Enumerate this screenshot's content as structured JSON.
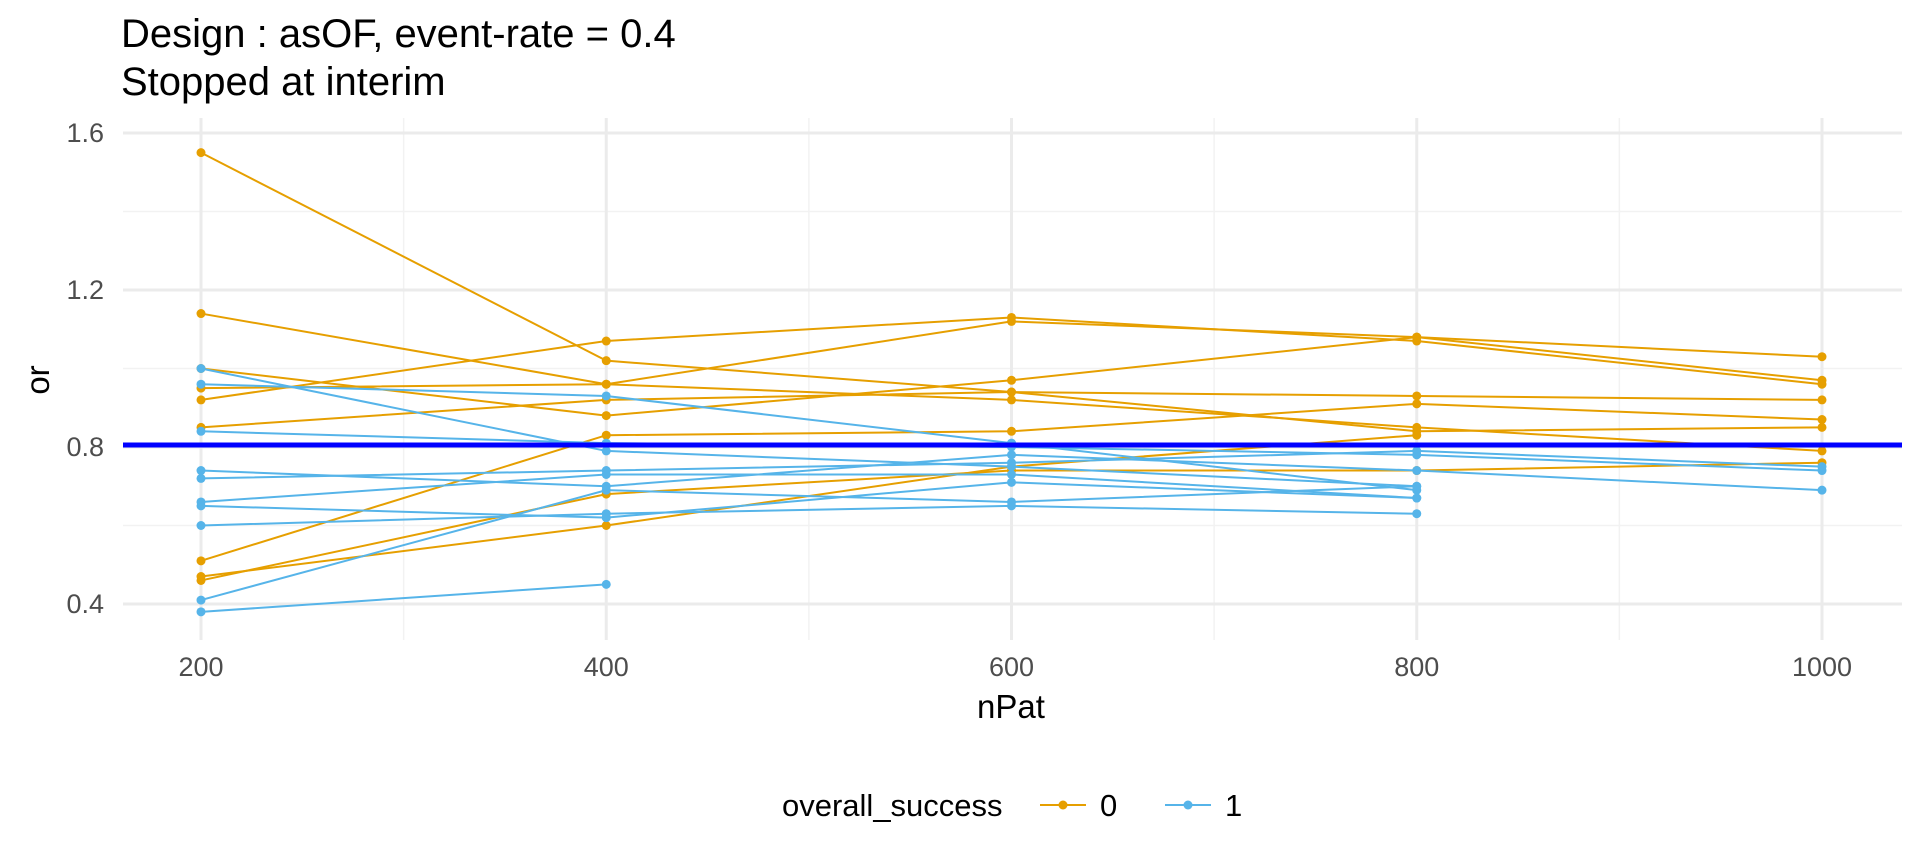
{
  "chart_data": {
    "type": "line",
    "title": "Design : asOF, event-rate = 0.4",
    "subtitle": "Stopped at interim",
    "xlabel": "nPat",
    "ylabel": "or",
    "xlim": [
      150,
      1080
    ],
    "ylim": [
      0.32,
      1.64
    ],
    "x_ticks": [
      200,
      400,
      600,
      800,
      1000
    ],
    "y_ticks": [
      0.4,
      0.8,
      1.2,
      1.6
    ],
    "x_tick_labels": [
      "200",
      "400",
      "600",
      "800",
      "1000"
    ],
    "y_tick_labels": [
      "0.4",
      "0.8",
      "1.2",
      "1.6"
    ],
    "grid": true,
    "reference_line": {
      "y": 0.805,
      "color": "#0000ff"
    },
    "legend": {
      "title": "overall_success",
      "position": "bottom",
      "entries": [
        {
          "label": "0",
          "color": "#e69f00"
        },
        {
          "label": "1",
          "color": "#56b4e9"
        }
      ]
    },
    "series": [
      {
        "group": "0",
        "color": "#e69f00",
        "x": [
          200,
          400,
          600,
          800,
          1000
        ],
        "y": [
          1.55,
          1.02,
          0.94,
          0.84,
          0.85
        ]
      },
      {
        "group": "0",
        "color": "#e69f00",
        "x": [
          200,
          400,
          600,
          800,
          1000
        ],
        "y": [
          1.14,
          0.96,
          0.92,
          0.85,
          0.79
        ]
      },
      {
        "group": "0",
        "color": "#e69f00",
        "x": [
          200,
          400,
          600,
          800,
          1000
        ],
        "y": [
          0.92,
          1.07,
          1.13,
          1.07,
          0.96
        ]
      },
      {
        "group": "0",
        "color": "#e69f00",
        "x": [
          200,
          400,
          600,
          800,
          1000
        ],
        "y": [
          1.0,
          0.88,
          0.97,
          1.08,
          1.03
        ]
      },
      {
        "group": "0",
        "color": "#e69f00",
        "x": [
          200,
          400,
          600,
          800,
          1000
        ],
        "y": [
          0.95,
          0.96,
          1.12,
          1.08,
          0.97
        ]
      },
      {
        "group": "0",
        "color": "#e69f00",
        "x": [
          200,
          400,
          600,
          800,
          1000
        ],
        "y": [
          0.85,
          0.92,
          0.94,
          0.93,
          0.92
        ]
      },
      {
        "group": "0",
        "color": "#e69f00",
        "x": [
          200,
          400,
          600,
          800,
          1000
        ],
        "y": [
          0.51,
          0.83,
          0.84,
          0.91,
          0.87
        ]
      },
      {
        "group": "0",
        "color": "#e69f00",
        "x": [
          200,
          400,
          600,
          800,
          1000
        ],
        "y": [
          0.46,
          0.68,
          0.74,
          0.74,
          0.76
        ]
      },
      {
        "group": "0",
        "color": "#e69f00",
        "x": [
          200,
          400,
          600,
          800
        ],
        "y": [
          0.47,
          0.6,
          0.75,
          0.83
        ]
      },
      {
        "group": "1",
        "color": "#56b4e9",
        "x": [
          200,
          400,
          600,
          800,
          1000
        ],
        "y": [
          0.84,
          0.81,
          0.8,
          0.78,
          0.74
        ]
      },
      {
        "group": "1",
        "color": "#56b4e9",
        "x": [
          200,
          400,
          600,
          800
        ],
        "y": [
          1.0,
          0.79,
          0.75,
          0.7
        ]
      },
      {
        "group": "1",
        "color": "#56b4e9",
        "x": [
          200,
          400,
          600,
          800
        ],
        "y": [
          0.96,
          0.93,
          0.81,
          0.69
        ]
      },
      {
        "group": "1",
        "color": "#56b4e9",
        "x": [
          200,
          400,
          600,
          800,
          1000
        ],
        "y": [
          0.72,
          0.74,
          0.76,
          0.79,
          0.75
        ]
      },
      {
        "group": "1",
        "color": "#56b4e9",
        "x": [
          200,
          400,
          600,
          800,
          1000
        ],
        "y": [
          0.74,
          0.7,
          0.78,
          0.74,
          0.69
        ]
      },
      {
        "group": "1",
        "color": "#56b4e9",
        "x": [
          200,
          400,
          600,
          800
        ],
        "y": [
          0.66,
          0.73,
          0.73,
          0.67
        ]
      },
      {
        "group": "1",
        "color": "#56b4e9",
        "x": [
          200,
          400,
          600,
          800
        ],
        "y": [
          0.65,
          0.62,
          0.71,
          0.67
        ]
      },
      {
        "group": "1",
        "color": "#56b4e9",
        "x": [
          200,
          400,
          600,
          800
        ],
        "y": [
          0.6,
          0.63,
          0.65,
          0.63
        ]
      },
      {
        "group": "1",
        "color": "#56b4e9",
        "x": [
          200,
          400,
          600,
          800
        ],
        "y": [
          0.41,
          0.69,
          0.66,
          0.7
        ]
      },
      {
        "group": "1",
        "color": "#56b4e9",
        "x": [
          200,
          400
        ],
        "y": [
          0.38,
          0.45
        ]
      }
    ]
  }
}
